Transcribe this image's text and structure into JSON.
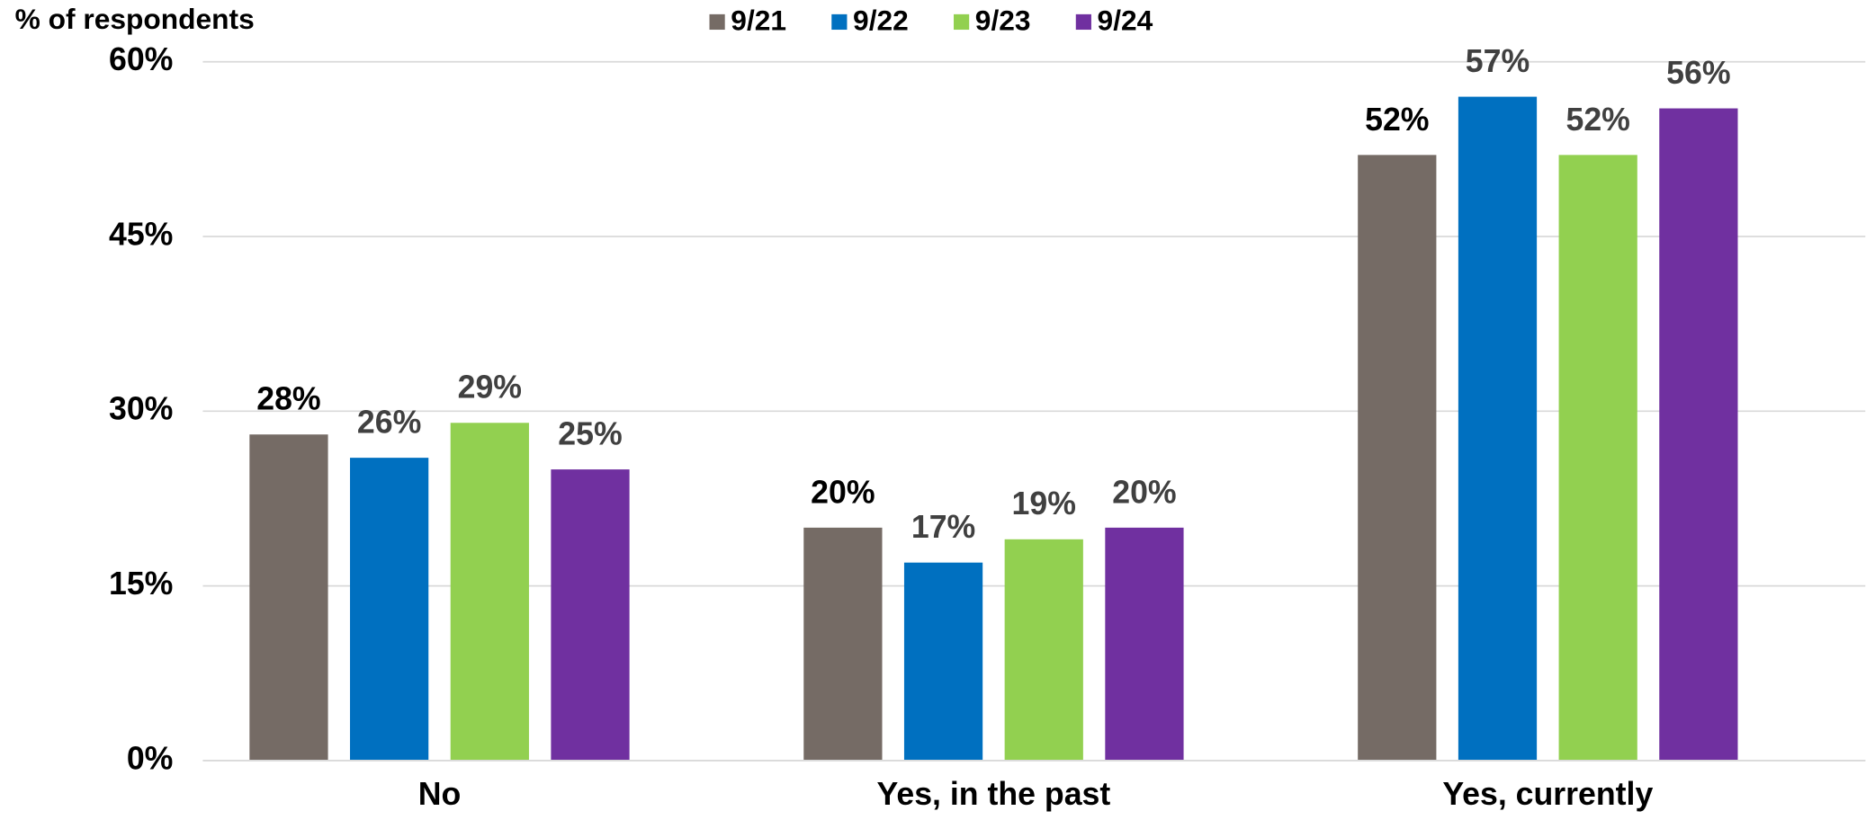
{
  "chart_data": {
    "type": "bar",
    "y_axis_label": "% of respondents",
    "categories": [
      "No",
      "Yes, in the past",
      "Yes, currently"
    ],
    "series": [
      {
        "name": "9/21",
        "color": "#756b65",
        "values": [
          28,
          20,
          52
        ],
        "value_labels": [
          "28%",
          "20%",
          "52%"
        ]
      },
      {
        "name": "9/22",
        "color": "#0070c0",
        "values": [
          26,
          17,
          57
        ],
        "value_labels": [
          "26%",
          "17%",
          "57%"
        ]
      },
      {
        "name": "9/23",
        "color": "#92d050",
        "values": [
          29,
          19,
          52
        ],
        "value_labels": [
          "29%",
          "19%",
          "52%"
        ]
      },
      {
        "name": "9/24",
        "color": "#7030a0",
        "values": [
          25,
          20,
          56
        ],
        "value_labels": [
          "25%",
          "20%",
          "56%"
        ]
      }
    ],
    "ylim": [
      0,
      60
    ],
    "yticks": [
      {
        "value": 0,
        "label": "0%"
      },
      {
        "value": 15,
        "label": "15%"
      },
      {
        "value": 30,
        "label": "30%"
      },
      {
        "value": 45,
        "label": "45%"
      },
      {
        "value": 60,
        "label": "60%"
      }
    ],
    "grid": true,
    "legend": "top"
  }
}
